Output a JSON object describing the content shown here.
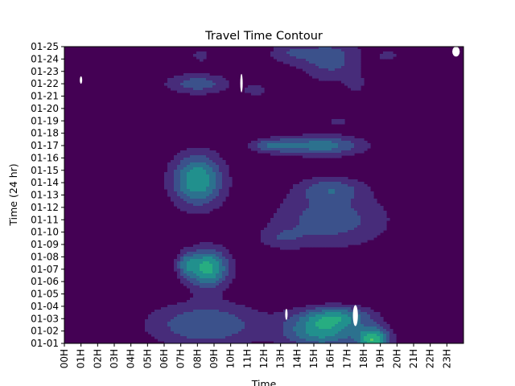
{
  "chart_data": {
    "type": "heatmap",
    "subtype": "filled-contour",
    "title": "Travel Time Contour",
    "xlabel": "Time",
    "ylabel": "Time (24 hr)",
    "colormap": "viridis",
    "background_color": "#440154",
    "x_ticks": [
      "00H",
      "01H",
      "02H",
      "03H",
      "04H",
      "05H",
      "06H",
      "07H",
      "08H",
      "09H",
      "10H",
      "11H",
      "12H",
      "13H",
      "14H",
      "15H",
      "16H",
      "17H",
      "18H",
      "19H",
      "20H",
      "21H",
      "22H",
      "23H"
    ],
    "y_ticks": [
      "01-01",
      "01-02",
      "01-03",
      "01-04",
      "01-05",
      "01-06",
      "01-07",
      "01-08",
      "01-09",
      "01-10",
      "01-11",
      "01-12",
      "01-13",
      "01-14",
      "01-15",
      "01-16",
      "01-17",
      "01-18",
      "01-19",
      "01-20",
      "01-21",
      "01-22",
      "01-23",
      "01-24",
      "01-25"
    ],
    "xlim": [
      0,
      24
    ],
    "ylim": [
      0,
      24
    ],
    "levels": [
      {
        "level": 0,
        "color": "#440154"
      },
      {
        "level": 1,
        "color": "#472c7a"
      },
      {
        "level": 2,
        "color": "#3b518b"
      },
      {
        "level": 3,
        "color": "#2c718e"
      },
      {
        "level": 4,
        "color": "#21908d"
      },
      {
        "level": 5,
        "color": "#27ad81"
      },
      {
        "level": 6,
        "color": "#5cc863"
      },
      {
        "level": 7,
        "color": "#aadc32"
      },
      {
        "level": 8,
        "color": "#fde725"
      }
    ],
    "hotspots": [
      {
        "hour": 8.0,
        "day": 13.2,
        "sx": 1.1,
        "sy": 1.5,
        "amp": 5.0
      },
      {
        "hour": 8.6,
        "day": 6.1,
        "sx": 0.9,
        "sy": 1.1,
        "amp": 5.5
      },
      {
        "hour": 7.3,
        "day": 6.4,
        "sx": 0.4,
        "sy": 0.7,
        "amp": 2.2
      },
      {
        "hour": 8.5,
        "day": 1.5,
        "sx": 2.5,
        "sy": 1.3,
        "amp": 3.0
      },
      {
        "hour": 15.5,
        "day": 1.0,
        "sx": 1.6,
        "sy": 1.0,
        "amp": 4.5
      },
      {
        "hour": 18.6,
        "day": 0.3,
        "sx": 0.7,
        "sy": 0.7,
        "amp": 5.5
      },
      {
        "hour": 16.5,
        "day": 2.2,
        "sx": 1.5,
        "sy": 0.6,
        "amp": 3.0
      },
      {
        "hour": 15.5,
        "day": 16.0,
        "sx": 1.8,
        "sy": 0.6,
        "amp": 3.5
      },
      {
        "hour": 12.5,
        "day": 16.0,
        "sx": 1.0,
        "sy": 0.4,
        "amp": 2.5
      },
      {
        "hour": 16.0,
        "day": 10.0,
        "sx": 2.5,
        "sy": 1.6,
        "amp": 2.6
      },
      {
        "hour": 16.0,
        "day": 12.5,
        "sx": 1.4,
        "sy": 0.7,
        "amp": 2.2
      },
      {
        "hour": 8.0,
        "day": 21.0,
        "sx": 1.4,
        "sy": 0.6,
        "amp": 2.6
      },
      {
        "hour": 8.2,
        "day": 23.3,
        "sx": 0.4,
        "sy": 0.4,
        "amp": 1.6
      },
      {
        "hour": 16.0,
        "day": 23.0,
        "sx": 1.4,
        "sy": 1.3,
        "amp": 2.5
      },
      {
        "hour": 13.5,
        "day": 23.5,
        "sx": 1.0,
        "sy": 0.6,
        "amp": 1.6
      },
      {
        "hour": 17.5,
        "day": 21.0,
        "sx": 0.4,
        "sy": 0.5,
        "amp": 1.3
      },
      {
        "hour": 19.5,
        "day": 23.3,
        "sx": 0.5,
        "sy": 0.4,
        "amp": 1.3
      },
      {
        "hour": 11.5,
        "day": 20.5,
        "sx": 0.6,
        "sy": 0.4,
        "amp": 1.4
      },
      {
        "hour": 13.0,
        "day": 8.5,
        "sx": 1.0,
        "sy": 0.6,
        "amp": 1.3
      },
      {
        "hour": 16.5,
        "day": 18.0,
        "sx": 0.6,
        "sy": 0.3,
        "amp": 1.3
      }
    ],
    "missing_data": [
      {
        "hour": 1.0,
        "day": 21.0,
        "w": 0.1,
        "h": 0.6
      },
      {
        "hour": 10.65,
        "day": 20.3,
        "w": 0.14,
        "h": 1.5
      },
      {
        "hour": 13.35,
        "day": 1.9,
        "w": 0.1,
        "h": 0.9
      },
      {
        "hour": 17.5,
        "day": 1.4,
        "w": 0.3,
        "h": 1.7
      },
      {
        "hour": 23.55,
        "day": 23.2,
        "w": 0.45,
        "h": 0.8
      }
    ]
  }
}
